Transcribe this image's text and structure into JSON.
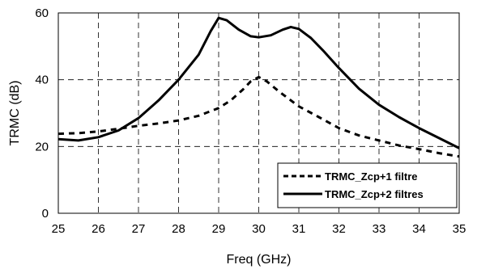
{
  "chart_data": {
    "type": "line",
    "title": "",
    "xlabel": "Freq (GHz)",
    "ylabel": "TRMC (dB)",
    "xlim": [
      25,
      35
    ],
    "ylim": [
      0,
      60
    ],
    "xticks": [
      25,
      26,
      27,
      28,
      29,
      30,
      31,
      32,
      33,
      34,
      35
    ],
    "yticks": [
      0,
      20,
      40,
      60
    ],
    "grid": true,
    "legend_position": "bottom-right",
    "series": [
      {
        "name": "TRMC_Zcp+1 filtre",
        "style": "dashed",
        "color": "#000000",
        "x": [
          25,
          25.5,
          26,
          26.5,
          27,
          27.5,
          28,
          28.5,
          29,
          29.3,
          29.6,
          29.8,
          30,
          30.2,
          30.5,
          31,
          31.5,
          32,
          32.5,
          33,
          33.5,
          34,
          34.5,
          35
        ],
        "y": [
          23.8,
          24,
          24.5,
          25.3,
          26.2,
          26.9,
          27.8,
          29.2,
          31.5,
          33.8,
          37,
          39.5,
          40.8,
          39.5,
          36.5,
          32,
          28.8,
          25.5,
          23.3,
          21.8,
          20.3,
          19.2,
          18,
          17
        ]
      },
      {
        "name": "TRMC_Zcp+2 filtres",
        "style": "solid",
        "color": "#000000",
        "x": [
          25,
          25.5,
          26,
          26.5,
          27,
          27.5,
          28,
          28.5,
          28.8,
          29,
          29.2,
          29.5,
          29.8,
          30,
          30.3,
          30.6,
          30.8,
          31,
          31.3,
          31.6,
          32,
          32.5,
          33,
          33.5,
          34,
          34.5,
          35
        ],
        "y": [
          22.2,
          21.8,
          22.8,
          24.8,
          28.5,
          33.8,
          40,
          47.5,
          54.5,
          58.5,
          57.8,
          55,
          53,
          52.7,
          53.3,
          55,
          55.8,
          55.2,
          52.5,
          48.8,
          43.5,
          37.3,
          32.5,
          28.8,
          25.5,
          22.5,
          19.5
        ]
      }
    ]
  }
}
